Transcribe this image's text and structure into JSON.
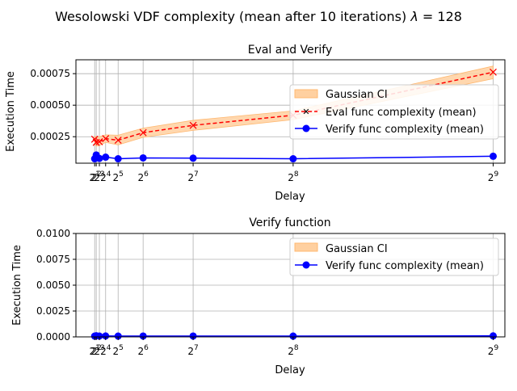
{
  "suptitle": "Wesolowski VDF complexity (mean after 10 iterations) λ = 128",
  "suptitle_prefix": "Wesolowski VDF complexity (mean after 10 iterations) ",
  "suptitle_lambda": "λ",
  "suptitle_suffix": " = 128",
  "colors": {
    "eval": "#ff0000",
    "verify": "#0000ff",
    "ci_fill": "#ffd0a0",
    "ci_edge": "#ffb870",
    "grid": "#b0b0b0"
  },
  "chart_data": [
    {
      "type": "line",
      "title": "Eval and Verify",
      "xlabel": "Delay",
      "ylabel": "Execution Time",
      "x": [
        2,
        4,
        8,
        16,
        32,
        64,
        128,
        256,
        512
      ],
      "xticks": [
        {
          "value": 2,
          "base": "2",
          "exp": "1"
        },
        {
          "value": 4,
          "base": "2",
          "exp": "2"
        },
        {
          "value": 8,
          "base": "2",
          "exp": "3"
        },
        {
          "value": 16,
          "base": "2",
          "exp": "4"
        },
        {
          "value": 32,
          "base": "2",
          "exp": "5"
        },
        {
          "value": 64,
          "base": "2",
          "exp": "6"
        },
        {
          "value": 128,
          "base": "2",
          "exp": "7"
        },
        {
          "value": 256,
          "base": "2",
          "exp": "8"
        },
        {
          "value": 512,
          "base": "2",
          "exp": "9"
        }
      ],
      "xlim": [
        -22,
        527
      ],
      "ylim": [
        4e-05,
        0.00086
      ],
      "yticks": [
        0.00025,
        0.0005,
        0.00075
      ],
      "ytick_labels": [
        "0.00025",
        "0.00050",
        "0.00075"
      ],
      "grid": true,
      "legend": "right",
      "series": [
        {
          "name": "Eval func complexity (mean)",
          "kind": "eval",
          "values": [
            0.00023,
            0.000205,
            0.00021,
            0.000235,
            0.000222,
            0.000282,
            0.00034,
            0.00042,
            0.000762
          ]
        },
        {
          "name": "Verify func complexity (mean)",
          "kind": "verify",
          "values": [
            7.5e-05,
            0.000105,
            7.8e-05,
            8.8e-05,
            7.5e-05,
            8.2e-05,
            8e-05,
            7.5e-05,
            9.5e-05
          ]
        }
      ],
      "ci": {
        "name": "Gaussian CI",
        "lower": [
          0.000205,
          0.000175,
          0.00018,
          0.000205,
          0.000185,
          0.000245,
          0.0003,
          0.000385,
          0.00071
        ],
        "upper": [
          0.000255,
          0.000245,
          0.00025,
          0.000265,
          0.000262,
          0.000318,
          0.00038,
          0.000455,
          0.00081
        ]
      },
      "legend_entries": [
        "Gaussian CI",
        "Eval func complexity (mean)",
        "Verify func complexity (mean)"
      ]
    },
    {
      "type": "line",
      "title": "Verify function",
      "xlabel": "Delay",
      "ylabel": "Execution Time",
      "x": [
        2,
        4,
        8,
        16,
        32,
        64,
        128,
        256,
        512
      ],
      "xticks": [
        {
          "value": 2,
          "base": "2",
          "exp": "1"
        },
        {
          "value": 4,
          "base": "2",
          "exp": "2"
        },
        {
          "value": 8,
          "base": "2",
          "exp": "3"
        },
        {
          "value": 16,
          "base": "2",
          "exp": "4"
        },
        {
          "value": 32,
          "base": "2",
          "exp": "5"
        },
        {
          "value": 64,
          "base": "2",
          "exp": "6"
        },
        {
          "value": 128,
          "base": "2",
          "exp": "7"
        },
        {
          "value": 256,
          "base": "2",
          "exp": "8"
        },
        {
          "value": 512,
          "base": "2",
          "exp": "9"
        }
      ],
      "xlim": [
        -22,
        527
      ],
      "ylim": [
        0,
        0.01
      ],
      "yticks": [
        0,
        0.0025,
        0.005,
        0.0075,
        0.01
      ],
      "ytick_labels": [
        "0.0000",
        "0.0025",
        "0.0050",
        "0.0075",
        "0.0100"
      ],
      "grid": true,
      "legend": "upper right",
      "series": [
        {
          "name": "Verify func complexity (mean)",
          "kind": "verify",
          "values": [
            7.5e-05,
            0.000105,
            7.8e-05,
            8.8e-05,
            7.5e-05,
            8.2e-05,
            8e-05,
            7.5e-05,
            9.5e-05
          ]
        }
      ],
      "ci": {
        "name": "Gaussian CI",
        "lower": [
          6e-05,
          8e-05,
          6e-05,
          7e-05,
          6e-05,
          6.5e-05,
          6.5e-05,
          6e-05,
          8e-05
        ],
        "upper": [
          9e-05,
          0.00013,
          9.5e-05,
          0.000105,
          9e-05,
          0.0001,
          9.5e-05,
          9e-05,
          0.00011
        ]
      },
      "legend_entries": [
        "Gaussian CI",
        "Verify func complexity (mean)"
      ]
    }
  ]
}
